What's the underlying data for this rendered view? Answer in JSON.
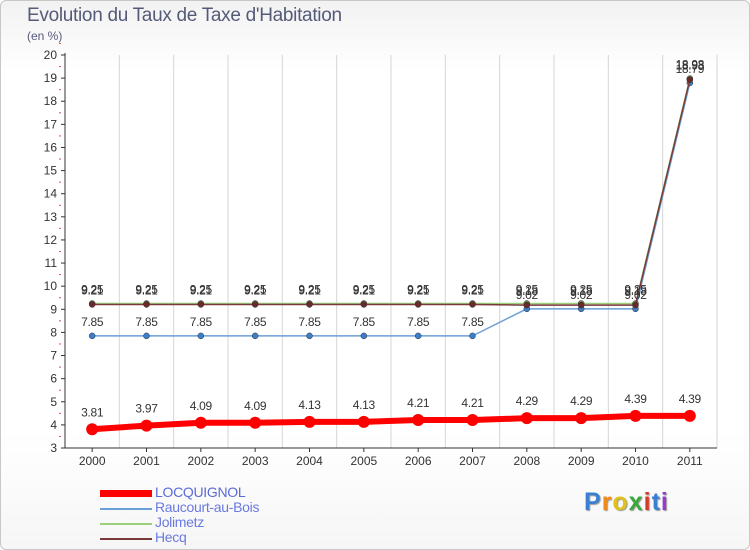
{
  "title": "Evolution du Taux de Taxe d'Habitation",
  "unit_label": "(en %)",
  "brand": {
    "text": "Proxiti",
    "colors": [
      "#3a7fd0",
      "#f08a1c",
      "#e0c21a",
      "#3aa83a",
      "#d83a2a",
      "#3a7fd0",
      "#9a3ac8"
    ]
  },
  "colors": {
    "LOCQUIGNOL": "#ff0000",
    "Raucourt-au-Bois": "#6a9fd8",
    "Jolimetz": "#9ad07a",
    "Hecq": "#7a3a3a"
  },
  "chart_data": {
    "type": "line",
    "x": [
      "2000",
      "2001",
      "2002",
      "2003",
      "2004",
      "2005",
      "2006",
      "2007",
      "2008",
      "2009",
      "2010",
      "2011"
    ],
    "ylim": [
      3,
      20
    ],
    "yticks": [
      3,
      4,
      5,
      6,
      7,
      8,
      9,
      10,
      11,
      12,
      13,
      14,
      15,
      16,
      17,
      18,
      19,
      20
    ],
    "series": [
      {
        "name": "LOCQUIGNOL",
        "values": [
          3.81,
          3.97,
          4.09,
          4.09,
          4.13,
          4.13,
          4.21,
          4.21,
          4.29,
          4.29,
          4.39,
          4.39
        ],
        "labels": [
          "3.81",
          "3.97",
          "4.09",
          "4.09",
          "4.13",
          "4.13",
          "4.21",
          "4.21",
          "4.29",
          "4.29",
          "4.39",
          "4.39"
        ]
      },
      {
        "name": "Raucourt-au-Bois",
        "values": [
          7.85,
          7.85,
          7.85,
          7.85,
          7.85,
          7.85,
          7.85,
          7.85,
          9.02,
          9.02,
          9.02,
          18.79
        ],
        "labels": [
          "7.85",
          "7.85",
          "7.85",
          "7.85",
          "7.85",
          "7.85",
          "7.85",
          "7.85",
          "9.02",
          "9.02",
          "9.02",
          "18.79"
        ]
      },
      {
        "name": "Jolimetz",
        "values": [
          9.25,
          9.25,
          9.25,
          9.25,
          9.25,
          9.25,
          9.25,
          9.25,
          9.25,
          9.25,
          9.25,
          18.98
        ],
        "labels": [
          "9.25",
          "9.25",
          "9.25",
          "9.25",
          "9.25",
          "9.25",
          "9.25",
          "9.25",
          "9.25",
          "9.25",
          "9.25",
          "18.98"
        ]
      },
      {
        "name": "Hecq",
        "values": [
          9.21,
          9.21,
          9.21,
          9.21,
          9.21,
          9.21,
          9.21,
          9.21,
          9.18,
          9.18,
          9.18,
          18.93
        ],
        "labels": [
          "9.21",
          "9.21",
          "9.21",
          "9.21",
          "9.21",
          "9.21",
          "9.21",
          "9.21",
          "9.18",
          "9.18",
          "9.18",
          "18.93"
        ]
      }
    ]
  }
}
